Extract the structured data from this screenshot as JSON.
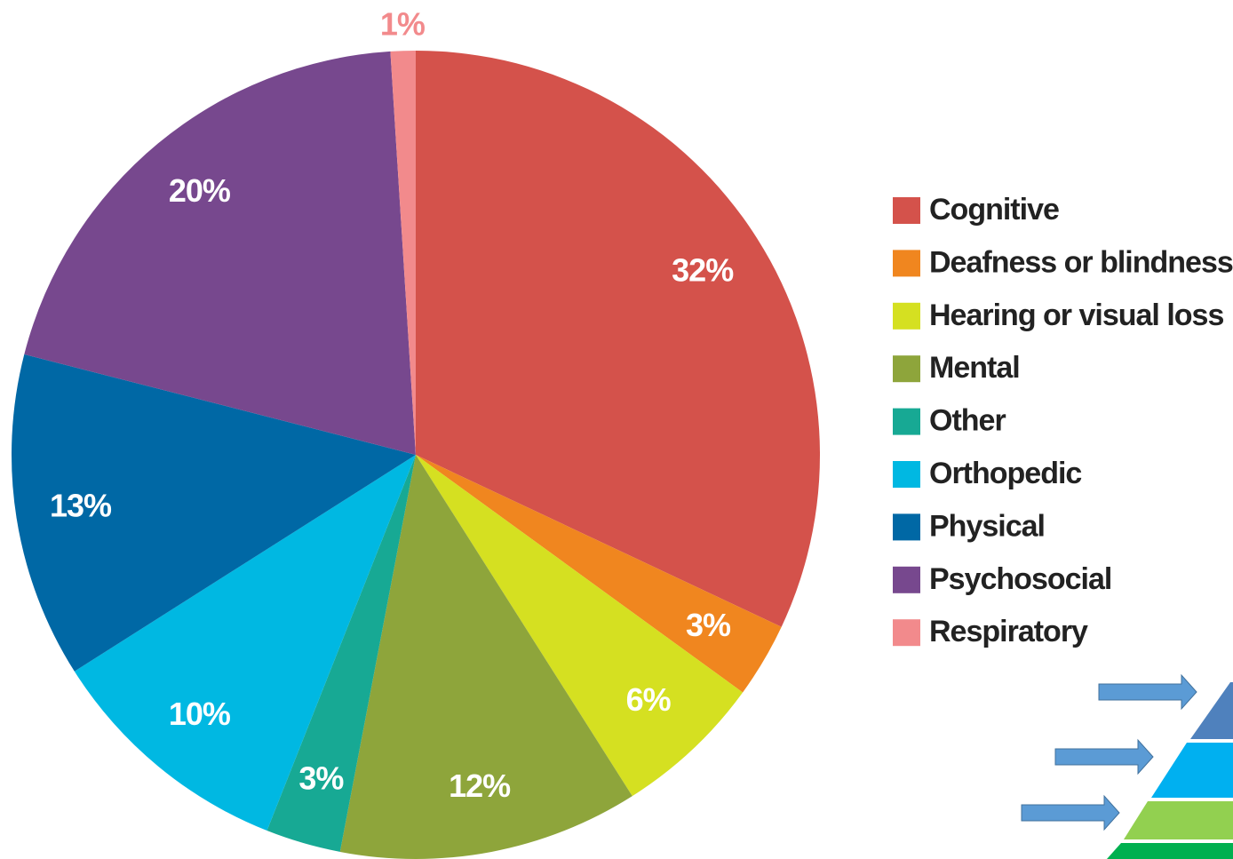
{
  "chart_data": {
    "type": "pie",
    "categories": [
      "Cognitive",
      "Deafness or blindness",
      "Hearing or visual loss",
      "Mental",
      "Other",
      "Orthopedic",
      "Physical",
      "Psychosocial",
      "Respiratory"
    ],
    "values": [
      32,
      3,
      6,
      12,
      3,
      10,
      13,
      20,
      1
    ],
    "value_labels": [
      "32%",
      "3%",
      "6%",
      "12%",
      "3%",
      "10%",
      "13%",
      "20%",
      "1%"
    ],
    "colors": [
      "#d4524b",
      "#f0861f",
      "#d5e021",
      "#8ea53b",
      "#17a994",
      "#00b8e2",
      "#0068a5",
      "#77488e",
      "#f28a8c"
    ],
    "legend": "right"
  }
}
